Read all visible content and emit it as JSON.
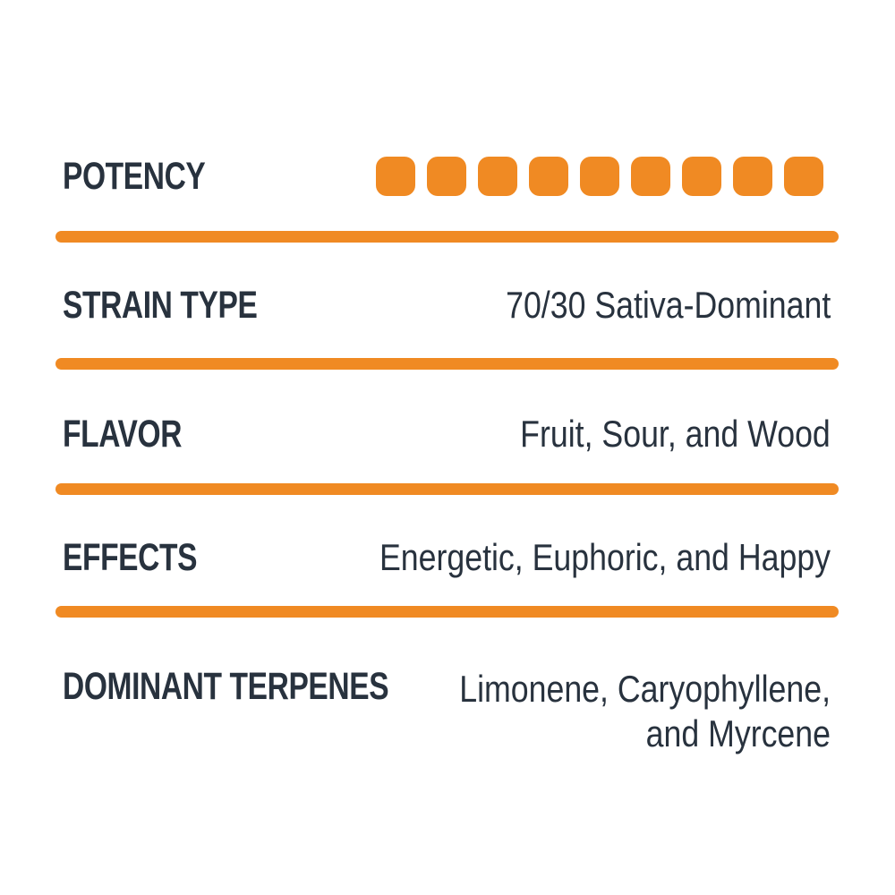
{
  "card": {
    "potency": {
      "label": "POTENCY",
      "filled_squares": 9,
      "total_squares": 9
    },
    "rows": [
      {
        "label": "STRAIN TYPE",
        "value": "70/30 Sativa-Dominant"
      },
      {
        "label": "FLAVOR",
        "value": "Fruit, Sour, and Wood"
      },
      {
        "label": "EFFECTS",
        "value": "Energetic, Euphoric, and Happy"
      },
      {
        "label": "DOMINANT TERPENES",
        "value": "Limonene, Caryophyllene, and Myrcene"
      }
    ],
    "colors": {
      "accent_orange": "#F08A23",
      "text_dark": "#28323E",
      "background": "#FFFFFF"
    }
  }
}
